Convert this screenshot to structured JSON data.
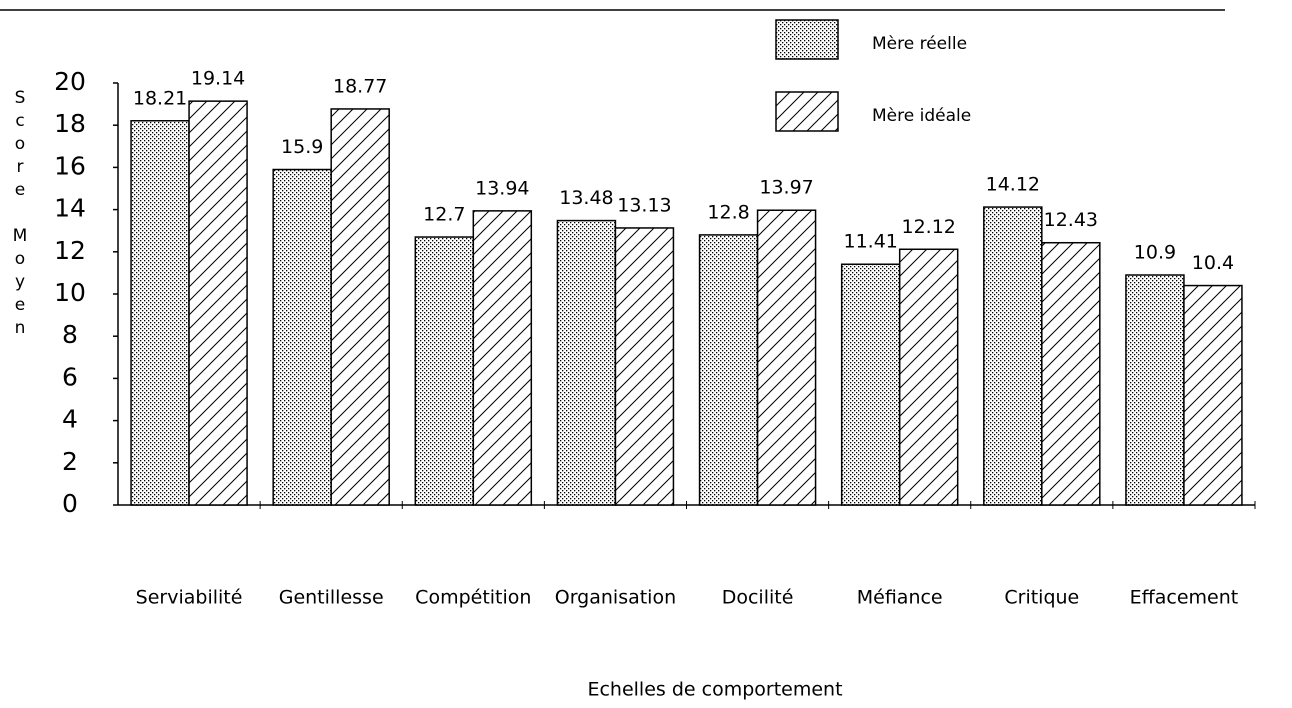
{
  "chart_data": {
    "type": "bar",
    "x_label": "Echelles de comportement",
    "y_label": "Score Moyen",
    "categories": [
      "Serviabilité",
      "Gentillesse",
      "Compétition",
      "Organisation",
      "Docilité",
      "Méfiance",
      "Critique",
      "Effacement"
    ],
    "series": [
      {
        "name": "Mère réelle",
        "color": "#000000",
        "pattern": "dots",
        "values": [
          18.21,
          15.9,
          12.7,
          13.48,
          12.8,
          11.41,
          14.12,
          10.9
        ]
      },
      {
        "name": "Mère idéale",
        "color": "#000000",
        "pattern": "hatch",
        "values": [
          19.14,
          18.77,
          13.94,
          13.13,
          13.97,
          12.12,
          12.43,
          10.4
        ]
      }
    ],
    "ylim": [
      0,
      20
    ],
    "yticks": [
      0,
      2,
      4,
      6,
      8,
      10,
      12,
      14,
      16,
      18,
      20
    ],
    "legend": "top-right",
    "grid": false
  }
}
